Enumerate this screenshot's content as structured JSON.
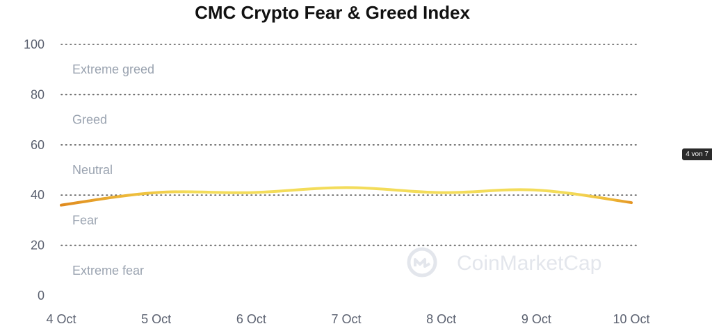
{
  "chart_data": {
    "type": "line",
    "title": "CMC Crypto Fear & Greed Index",
    "x": [
      "4 Oct",
      "5 Oct",
      "6 Oct",
      "7 Oct",
      "8 Oct",
      "9 Oct",
      "10 Oct"
    ],
    "series": [
      {
        "values": [
          36,
          41,
          41,
          43,
          41,
          42,
          37
        ]
      }
    ],
    "ylim": [
      0,
      100
    ],
    "yticks": [
      "0",
      "20",
      "40",
      "60",
      "80",
      "100"
    ],
    "bands": [
      "Extreme fear",
      "Fear",
      "Neutral",
      "Greed",
      "Extreme greed"
    ],
    "grid": true,
    "legend": "none",
    "colors": {
      "low": "#e08a1e",
      "high": "#f3dc5a",
      "grid": "#555555"
    }
  },
  "watermark": "CoinMarketCap",
  "watermark_icon": "coinmarketcap-logo-icon",
  "badge": "4 von 7"
}
